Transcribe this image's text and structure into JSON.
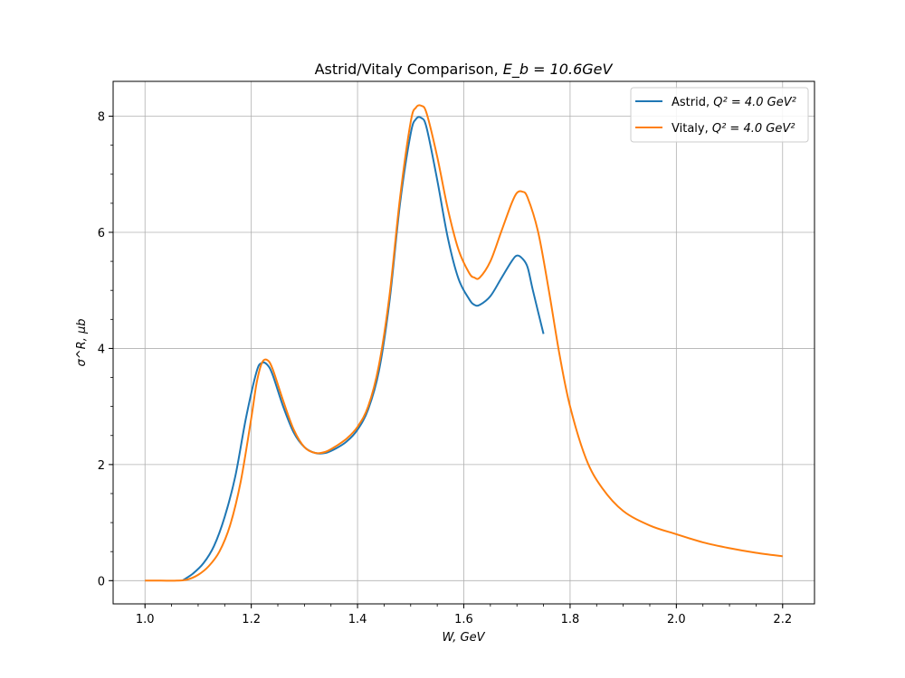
{
  "chart_data": {
    "type": "line",
    "title_prefix": "Astrid/Vitaly Comparison, ",
    "title_math": "E_b = 10.6GeV",
    "xlabel": "W, GeV",
    "ylabel": "σ^R, μb",
    "xlim": [
      0.94,
      2.26
    ],
    "ylim": [
      -0.4,
      8.6
    ],
    "x_ticks": [
      1.0,
      1.2,
      1.4,
      1.6,
      1.8,
      2.0,
      2.2
    ],
    "x_tick_labels": [
      "1.0",
      "1.2",
      "1.4",
      "1.6",
      "1.8",
      "2.0",
      "2.2"
    ],
    "y_ticks": [
      0,
      2,
      4,
      6,
      8
    ],
    "y_tick_labels": [
      "0",
      "2",
      "4",
      "6",
      "8"
    ],
    "grid": true,
    "legend_position": "top-right",
    "series": [
      {
        "name": "Astrid, Q^2 = 4.0 GeV^2",
        "legend_prefix": "Astrid, ",
        "legend_math": "Q² = 4.0 GeV²",
        "color": "#1f77b4",
        "x": [
          1.07,
          1.09,
          1.11,
          1.13,
          1.15,
          1.17,
          1.19,
          1.21,
          1.22,
          1.23,
          1.24,
          1.26,
          1.28,
          1.3,
          1.32,
          1.34,
          1.36,
          1.38,
          1.4,
          1.42,
          1.44,
          1.46,
          1.48,
          1.5,
          1.51,
          1.52,
          1.53,
          1.55,
          1.57,
          1.59,
          1.61,
          1.62,
          1.63,
          1.65,
          1.67,
          1.69,
          1.7,
          1.71,
          1.72,
          1.73,
          1.75
        ],
        "y": [
          0.0,
          0.12,
          0.3,
          0.6,
          1.1,
          1.8,
          2.8,
          3.6,
          3.75,
          3.72,
          3.55,
          3.0,
          2.55,
          2.3,
          2.2,
          2.2,
          2.28,
          2.4,
          2.6,
          2.95,
          3.6,
          4.8,
          6.5,
          7.7,
          7.95,
          7.97,
          7.8,
          6.9,
          5.9,
          5.2,
          4.85,
          4.75,
          4.75,
          4.9,
          5.2,
          5.5,
          5.6,
          5.55,
          5.4,
          5.0,
          4.25
        ]
      },
      {
        "name": "Vitaly, Q^2 = 4.0 GeV^2",
        "legend_prefix": "Vitaly, ",
        "legend_math": "Q² = 4.0 GeV²",
        "color": "#ff7f0e",
        "x": [
          1.0,
          1.03,
          1.06,
          1.08,
          1.1,
          1.12,
          1.14,
          1.16,
          1.18,
          1.2,
          1.21,
          1.22,
          1.23,
          1.24,
          1.26,
          1.28,
          1.3,
          1.32,
          1.34,
          1.36,
          1.38,
          1.4,
          1.42,
          1.44,
          1.46,
          1.48,
          1.5,
          1.51,
          1.52,
          1.53,
          1.55,
          1.57,
          1.59,
          1.61,
          1.62,
          1.63,
          1.65,
          1.67,
          1.69,
          1.7,
          1.71,
          1.72,
          1.74,
          1.76,
          1.78,
          1.8,
          1.83,
          1.86,
          1.9,
          1.95,
          2.0,
          2.05,
          2.1,
          2.15,
          2.2
        ],
        "y": [
          0.0,
          0.0,
          0.0,
          0.02,
          0.1,
          0.25,
          0.5,
          0.95,
          1.7,
          2.8,
          3.4,
          3.75,
          3.8,
          3.65,
          3.1,
          2.6,
          2.3,
          2.2,
          2.22,
          2.32,
          2.45,
          2.65,
          3.0,
          3.7,
          4.9,
          6.6,
          7.9,
          8.15,
          8.18,
          8.05,
          7.3,
          6.4,
          5.7,
          5.3,
          5.22,
          5.22,
          5.5,
          6.0,
          6.5,
          6.68,
          6.7,
          6.6,
          6.0,
          5.0,
          3.9,
          3.0,
          2.1,
          1.6,
          1.2,
          0.95,
          0.8,
          0.66,
          0.56,
          0.48,
          0.42
        ]
      }
    ]
  }
}
